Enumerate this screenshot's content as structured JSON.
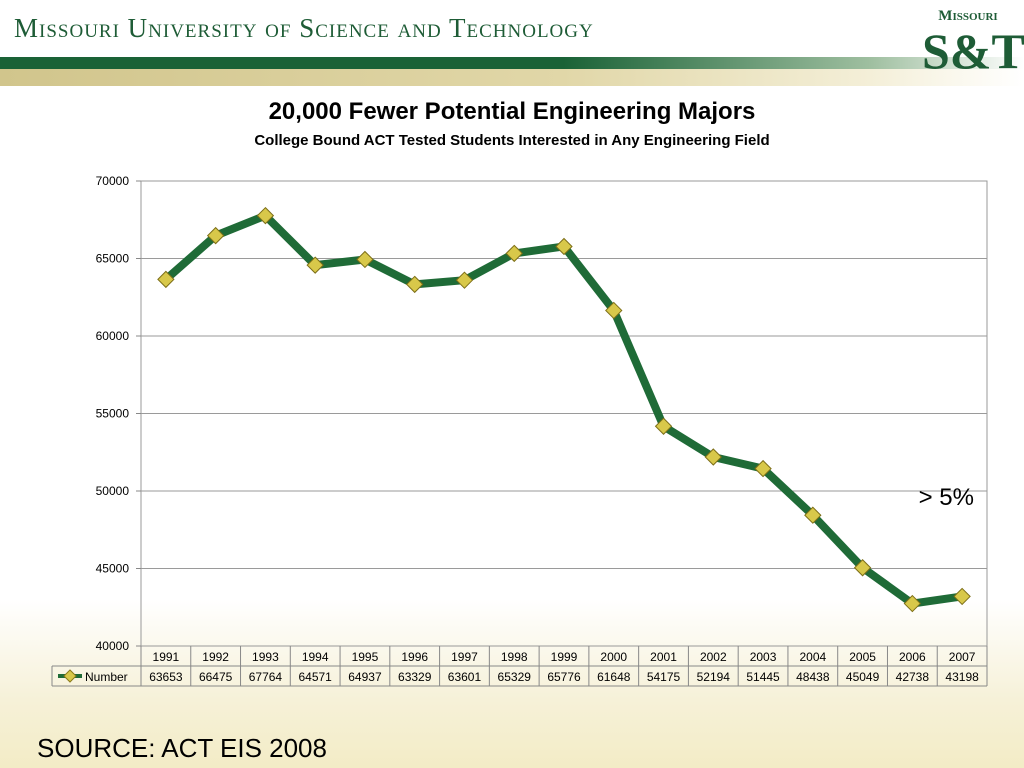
{
  "header": {
    "title": "Missouri University of Science and Technology",
    "logo_top": "Missouri",
    "logo_main": "S&T"
  },
  "source": "SOURCE: ACT EIS 2008",
  "colors": {
    "brand_green": "#1e5c36",
    "line": "#1f6b37",
    "marker": "#d8c84a"
  },
  "chart_data": {
    "type": "line",
    "title": "20,000 Fewer Potential Engineering Majors",
    "subtitle": "College Bound ACT Tested Students Interested in Any Engineering Field",
    "categories": [
      "1991",
      "1992",
      "1993",
      "1994",
      "1995",
      "1996",
      "1997",
      "1998",
      "1999",
      "2000",
      "2001",
      "2002",
      "2003",
      "2004",
      "2005",
      "2006",
      "2007"
    ],
    "series": [
      {
        "name": "Number",
        "values": [
          63653,
          66475,
          67764,
          64571,
          64937,
          63329,
          63601,
          65329,
          65776,
          61648,
          54175,
          52194,
          51445,
          48438,
          45049,
          42738,
          43198
        ]
      }
    ],
    "ylim": [
      40000,
      70000
    ],
    "yticks": [
      "70000",
      "65000",
      "60000",
      "55000",
      "50000",
      "45000",
      "40000"
    ],
    "grid": true,
    "legend": "data-table",
    "annotation": "> 5%"
  }
}
